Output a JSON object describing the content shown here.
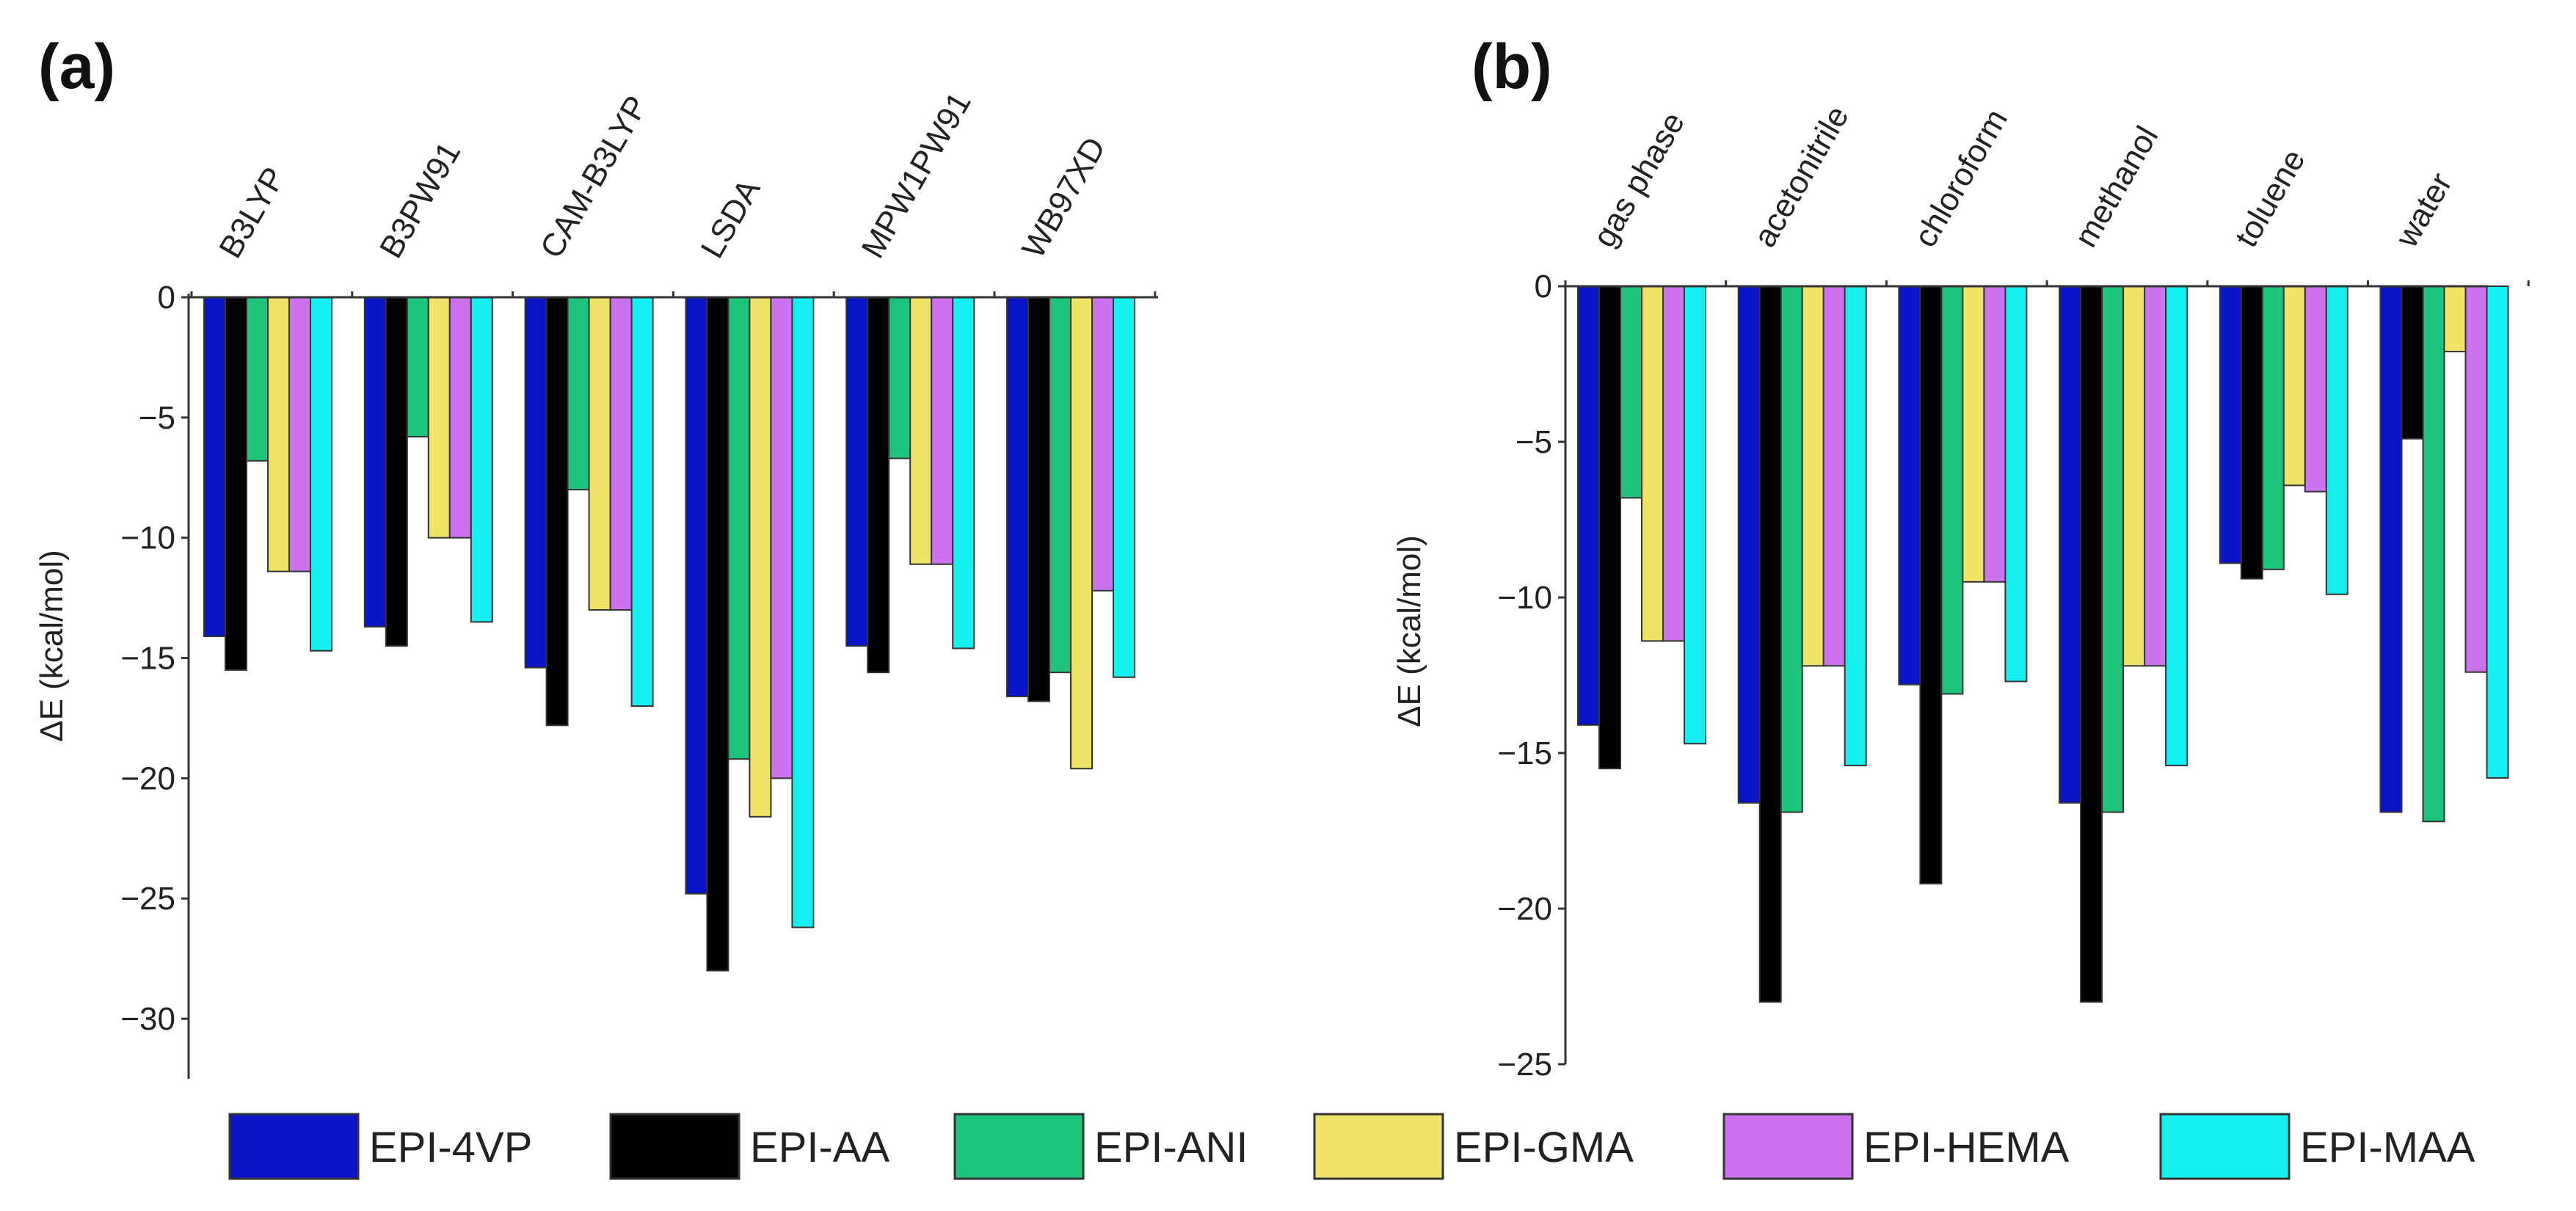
{
  "colors": {
    "EPI-4VP": "#0a14c8",
    "EPI-AA": "#000000",
    "EPI-ANI": "#1ec47c",
    "EPI-GMA": "#f0e468",
    "EPI-HEMA": "#cc72ee",
    "EPI-MAA": "#14f0f0"
  },
  "legend": {
    "items": [
      "EPI-4VP",
      "EPI-AA",
      "EPI-ANI",
      "EPI-GMA",
      "EPI-HEMA",
      "EPI-MAA"
    ]
  },
  "chart_data": [
    {
      "panel": "(a)",
      "type": "bar",
      "ylabel": "ΔE (kcal/mol)",
      "ylim": [
        -32.5,
        0
      ],
      "yticks": [
        0,
        -5,
        -10,
        -15,
        -20,
        -25,
        -30
      ],
      "ytick_labels": [
        "0",
        "−5",
        "−10",
        "−15",
        "−20",
        "−25",
        "−30"
      ],
      "categories": [
        "B3LYP",
        "B3PW91",
        "CAM-B3LYP",
        "LSDA",
        "MPW1PW91",
        "WB97XD"
      ],
      "series": [
        {
          "name": "EPI-4VP",
          "values": [
            -14.1,
            -13.7,
            -15.4,
            -24.8,
            -14.5,
            -16.6
          ]
        },
        {
          "name": "EPI-AA",
          "values": [
            -15.5,
            -14.5,
            -17.8,
            -28.0,
            -15.6,
            -16.8
          ]
        },
        {
          "name": "EPI-ANI",
          "values": [
            -6.8,
            -5.8,
            -8.0,
            -19.2,
            -6.7,
            -15.6
          ]
        },
        {
          "name": "EPI-GMA",
          "values": [
            -11.4,
            -10.0,
            -13.0,
            -21.6,
            -11.1,
            -19.6
          ]
        },
        {
          "name": "EPI-HEMA",
          "values": [
            -11.4,
            -10.0,
            -13.0,
            -20.0,
            -11.1,
            -12.2
          ]
        },
        {
          "name": "EPI-MAA",
          "values": [
            -14.7,
            -13.5,
            -17.0,
            -26.2,
            -14.6,
            -15.8
          ]
        }
      ]
    },
    {
      "panel": "(b)",
      "type": "bar",
      "ylabel": "ΔE (kcal/mol)",
      "ylim": [
        -25,
        0
      ],
      "yticks": [
        0,
        -5,
        -10,
        -15,
        -20,
        -25
      ],
      "ytick_labels": [
        "0",
        "−5",
        "−10",
        "−15",
        "−20",
        "−25"
      ],
      "categories": [
        "gas phase",
        "acetonitrile",
        "chloroform",
        "methanol",
        "toluene",
        "water"
      ],
      "series": [
        {
          "name": "EPI-4VP",
          "values": [
            -14.1,
            -16.6,
            -12.8,
            -16.6,
            -8.9,
            -16.9
          ]
        },
        {
          "name": "EPI-AA",
          "values": [
            -15.5,
            -23.0,
            -19.2,
            -23.0,
            -9.4,
            -4.9
          ]
        },
        {
          "name": "EPI-ANI",
          "values": [
            -6.8,
            -16.9,
            -13.1,
            -16.9,
            -9.1,
            -17.2
          ]
        },
        {
          "name": "EPI-GMA",
          "values": [
            -11.4,
            -12.2,
            -9.5,
            -12.2,
            -6.4,
            -2.1
          ]
        },
        {
          "name": "EPI-HEMA",
          "values": [
            -11.4,
            -12.2,
            -9.5,
            -12.2,
            -6.6,
            -12.4
          ]
        },
        {
          "name": "EPI-MAA",
          "values": [
            -14.7,
            -15.4,
            -12.7,
            -15.4,
            -9.9,
            -15.8
          ]
        }
      ]
    }
  ]
}
